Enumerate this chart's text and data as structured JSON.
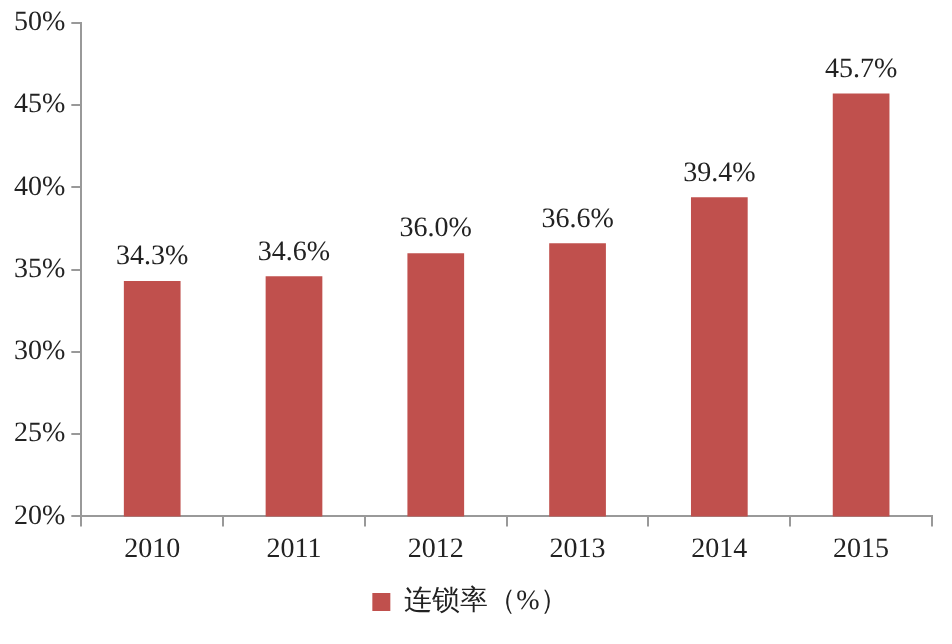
{
  "chart_data": {
    "type": "bar",
    "categories": [
      "2010",
      "2011",
      "2012",
      "2013",
      "2014",
      "2015"
    ],
    "series": [
      {
        "name": "连锁率（%）",
        "color": "#c0504d",
        "values": [
          34.3,
          34.6,
          36.0,
          36.6,
          39.4,
          45.7
        ],
        "value_labels": [
          "34.3%",
          "34.6%",
          "36.0%",
          "36.6%",
          "39.4%",
          "45.7%"
        ]
      }
    ],
    "ylim": [
      20,
      50
    ],
    "yticks": [
      {
        "value": 20,
        "label": "20%"
      },
      {
        "value": 25,
        "label": "25%"
      },
      {
        "value": 30,
        "label": "30%"
      },
      {
        "value": 35,
        "label": "35%"
      },
      {
        "value": 40,
        "label": "40%"
      },
      {
        "value": 45,
        "label": "45%"
      },
      {
        "value": 50,
        "label": "50%"
      }
    ],
    "grid": false,
    "legend": "bottom"
  }
}
